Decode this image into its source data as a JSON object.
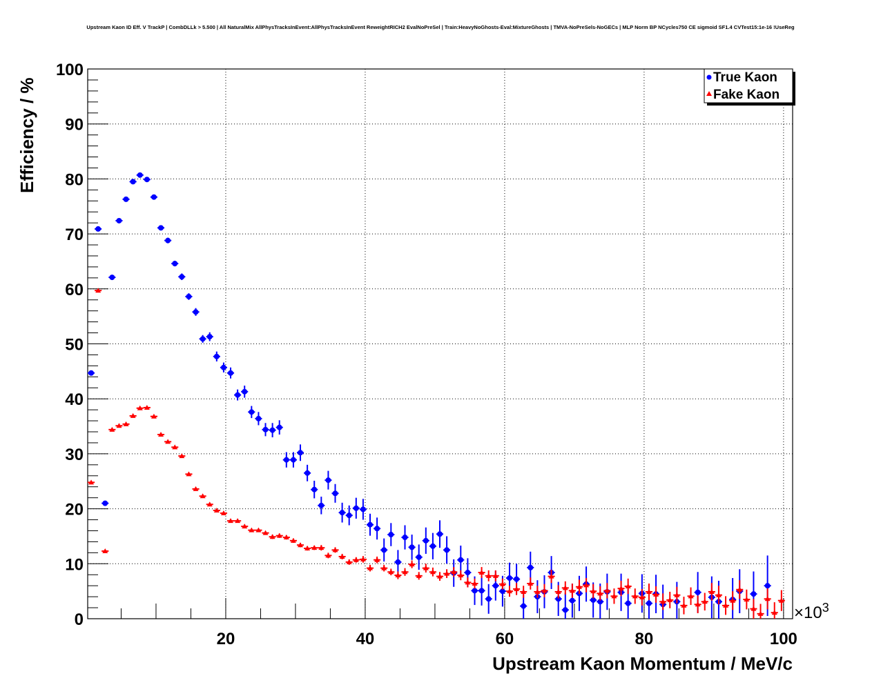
{
  "chart_data": {
    "type": "scatter",
    "title": "Upstream Kaon ID Eff. V TrackP | CombDLLk > 5.500 | All NaturalMix AllPhysTracksInEvent:AllPhysTracksInEvent ReweightRICH2 EvalNoPreSel | Train:HeavyNoGhosts-Eval:MixtureGhosts | TMVA-NoPreSels-NoGECs | MLP Norm BP NCycles750 CE sigmoid SF1.4 CVTest15:1e-16 !UseReg",
    "xlabel": "Upstream Kaon Momentum / MeV/c",
    "ylabel": "Efficiency / %",
    "x_multiplier": "×10",
    "x_multiplier_exp": "3",
    "xlim": [
      0.2,
      101.3
    ],
    "ylim": [
      0,
      100
    ],
    "xticks": [
      "20",
      "40",
      "60",
      "80",
      "100"
    ],
    "yticks": [
      "0",
      "10",
      "20",
      "30",
      "40",
      "50",
      "60",
      "70",
      "80",
      "90",
      "100"
    ],
    "grid": true,
    "legend_position": "top-right",
    "x_start": 0.7,
    "bin_width": 1.0,
    "series": [
      {
        "name": "True Kaon",
        "color": "#0000ff",
        "marker": "circle",
        "values": [
          44.7,
          70.9,
          21.0,
          62.1,
          72.4,
          76.3,
          79.5,
          80.7,
          79.9,
          76.7,
          71.1,
          68.8,
          64.6,
          62.2,
          58.6,
          55.8,
          50.9,
          51.3,
          47.7,
          45.7,
          44.7,
          40.7,
          41.3,
          37.6,
          36.4,
          34.4,
          34.3,
          34.8,
          28.9,
          28.9,
          30.2,
          26.5,
          23.5,
          20.6,
          25.2,
          22.8,
          19.3,
          18.8,
          20.1,
          19.9,
          17.1,
          16.4,
          12.5,
          15.3,
          10.3,
          14.8,
          13.0,
          11.2,
          14.2,
          13.2,
          15.4,
          12.5,
          8.3,
          10.7,
          8.4,
          5.1,
          5.1,
          3.6,
          6.0,
          5.0,
          7.4,
          7.2,
          2.3,
          9.3,
          4.0,
          4.9,
          8.4,
          3.6,
          1.6,
          3.3,
          4.6,
          6.3,
          3.4,
          3.1,
          4.9,
          null,
          4.8,
          2.8,
          null,
          4.6,
          2.8,
          4.5,
          2.6,
          null,
          3.1,
          null,
          null,
          4.8,
          null,
          3.9,
          3.1,
          null,
          3.5,
          5.0,
          null,
          4.5,
          null,
          6.0,
          null,
          null
        ],
        "yerr": [
          0.3,
          0.3,
          0.3,
          0.3,
          0.3,
          0.3,
          0.3,
          0.3,
          0.3,
          0.4,
          0.4,
          0.5,
          0.5,
          0.6,
          0.6,
          0.7,
          0.7,
          0.8,
          0.9,
          0.9,
          1.0,
          1.0,
          1.1,
          1.1,
          1.2,
          1.2,
          1.3,
          1.3,
          1.4,
          1.4,
          1.5,
          1.5,
          1.6,
          1.6,
          1.7,
          1.7,
          1.8,
          1.8,
          1.9,
          1.9,
          2.0,
          2.0,
          2.1,
          2.1,
          2.2,
          2.2,
          2.3,
          2.3,
          2.4,
          2.4,
          2.5,
          2.5,
          2.5,
          2.6,
          2.6,
          2.6,
          2.7,
          2.7,
          2.7,
          2.8,
          2.8,
          2.8,
          2.9,
          2.9,
          3.0,
          3.0,
          3.0,
          3.1,
          3.1,
          3.1,
          3.2,
          3.2,
          3.2,
          3.3,
          3.3,
          3.3,
          3.4,
          3.4,
          3.4,
          3.5,
          3.5,
          3.5,
          3.6,
          3.6,
          3.6,
          3.7,
          3.7,
          3.7,
          3.8,
          3.8,
          3.8,
          3.9,
          3.9,
          4.0,
          4.0,
          4.1,
          4.1,
          5.5,
          5.5,
          5.5
        ]
      },
      {
        "name": "Fake Kaon",
        "color": "#ff0000",
        "marker": "triangle",
        "values": [
          24.8,
          59.7,
          12.3,
          34.4,
          35.1,
          35.4,
          36.9,
          38.3,
          38.4,
          36.8,
          33.5,
          32.2,
          31.2,
          29.6,
          26.3,
          23.6,
          22.3,
          20.8,
          19.7,
          19.2,
          17.8,
          17.8,
          16.8,
          16.1,
          16.1,
          15.6,
          14.9,
          15.1,
          14.8,
          14.2,
          13.4,
          12.8,
          12.9,
          12.9,
          11.5,
          12.5,
          11.3,
          10.3,
          10.7,
          10.8,
          9.2,
          10.7,
          9.2,
          8.5,
          7.9,
          8.5,
          9.9,
          7.8,
          9.2,
          8.5,
          7.7,
          8.2,
          8.5,
          7.9,
          6.6,
          6.4,
          8.4,
          7.8,
          7.8,
          6.3,
          5.0,
          5.4,
          4.9,
          6.4,
          4.9,
          5.1,
          7.7,
          4.9,
          5.6,
          5.1,
          5.8,
          6.1,
          5.0,
          4.6,
          5.1,
          4.1,
          5.5,
          5.9,
          4.1,
          3.9,
          4.9,
          4.4,
          3.1,
          3.4,
          4.3,
          2.4,
          4.1,
          2.6,
          3.1,
          4.9,
          4.3,
          2.4,
          3.3,
          5.3,
          3.5,
          1.8,
          0.9,
          3.6,
          1.1,
          3.3
        ],
        "yerr": [
          0.2,
          0.2,
          0.2,
          0.2,
          0.2,
          0.2,
          0.2,
          0.2,
          0.2,
          0.2,
          0.2,
          0.2,
          0.2,
          0.2,
          0.2,
          0.3,
          0.3,
          0.3,
          0.3,
          0.3,
          0.3,
          0.3,
          0.3,
          0.3,
          0.3,
          0.3,
          0.4,
          0.4,
          0.4,
          0.4,
          0.4,
          0.4,
          0.4,
          0.5,
          0.5,
          0.5,
          0.5,
          0.5,
          0.5,
          0.6,
          0.6,
          0.6,
          0.6,
          0.6,
          0.7,
          0.7,
          0.7,
          0.7,
          0.8,
          0.8,
          0.8,
          0.8,
          0.9,
          0.9,
          0.9,
          0.9,
          1.0,
          1.0,
          1.0,
          1.0,
          1.0,
          1.1,
          1.1,
          1.1,
          1.1,
          1.2,
          1.2,
          1.2,
          1.2,
          1.3,
          1.3,
          1.3,
          1.3,
          1.3,
          1.4,
          1.4,
          1.4,
          1.4,
          1.4,
          1.5,
          1.5,
          1.5,
          1.5,
          1.5,
          1.5,
          1.6,
          1.6,
          1.6,
          1.6,
          1.6,
          1.7,
          1.7,
          1.7,
          1.7,
          1.8,
          1.8,
          1.8,
          1.9,
          1.9,
          1.9
        ]
      }
    ]
  }
}
